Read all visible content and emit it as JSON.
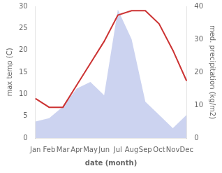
{
  "chart_data": {
    "type": "line",
    "categories": [
      "Jan",
      "Feb",
      "Mar",
      "Apr",
      "May",
      "Jun",
      "Jul",
      "Aug",
      "Sep",
      "Oct",
      "Nov",
      "Dec"
    ],
    "series": [
      {
        "type": "line",
        "color": "#cc3333",
        "axis": "y",
        "values": [
          9.0,
          7.0,
          7.0,
          12.0,
          17.0,
          22.0,
          28.0,
          29.0,
          29.0,
          26.0,
          20.0,
          13.0
        ]
      },
      {
        "type": "area",
        "color": "#b0bce8",
        "axis": "y2",
        "values": [
          5.0,
          6.0,
          9.5,
          15.0,
          17.0,
          13.0,
          39.0,
          30.0,
          11.0,
          7.0,
          3.0,
          7.0
        ]
      }
    ],
    "xlabel": "date (month)",
    "ylabel": "max temp (C)",
    "y2label": "med. precipitation (kg/m2)",
    "ylim": [
      0,
      30
    ],
    "yticks": [
      0,
      5,
      10,
      15,
      20,
      25,
      30
    ],
    "y2lim": [
      0,
      40
    ],
    "y2ticks": [
      0,
      10,
      20,
      30,
      40
    ],
    "grid": false
  }
}
